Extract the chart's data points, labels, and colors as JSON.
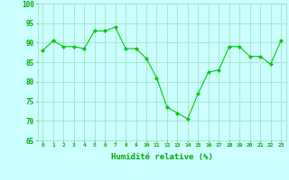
{
  "x": [
    0,
    1,
    2,
    3,
    4,
    5,
    6,
    7,
    8,
    9,
    10,
    11,
    12,
    13,
    14,
    15,
    16,
    17,
    18,
    19,
    20,
    21,
    22,
    23
  ],
  "y": [
    88,
    90.5,
    89,
    89,
    88.5,
    93,
    93,
    94,
    88.5,
    88.5,
    86,
    81,
    73.5,
    72,
    70.5,
    77,
    82.5,
    83,
    89,
    89,
    86.5,
    86.5,
    84.5,
    90.5
  ],
  "line_color": "#00cc00",
  "marker_color": "#00cc00",
  "bg_color": "#ccffff",
  "grid_color": "#99ddbb",
  "xlabel": "Humidité relative (%)",
  "xlabel_color": "#00aa00",
  "tick_color": "#00aa00",
  "ylim": [
    65,
    100
  ],
  "yticks": [
    65,
    70,
    75,
    80,
    85,
    90,
    95,
    100
  ],
  "xlim": [
    -0.5,
    23.5
  ],
  "xticks": [
    0,
    1,
    2,
    3,
    4,
    5,
    6,
    7,
    8,
    9,
    10,
    11,
    12,
    13,
    14,
    15,
    16,
    17,
    18,
    19,
    20,
    21,
    22,
    23
  ]
}
